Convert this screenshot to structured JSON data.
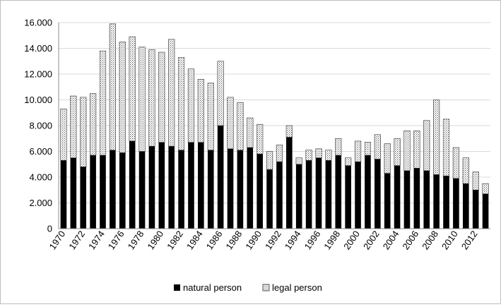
{
  "chart_data": {
    "type": "bar",
    "stacked": true,
    "title": "",
    "xlabel": "",
    "ylabel": "",
    "ylim": [
      0,
      16000
    ],
    "y_ticks": [
      0,
      2000,
      4000,
      6000,
      8000,
      10000,
      12000,
      14000,
      16000
    ],
    "y_tick_labels": [
      "0",
      "2.000",
      "4.000",
      "6.000",
      "8.000",
      "10.000",
      "12.000",
      "14.000",
      "16.000"
    ],
    "grid": true,
    "legend_position": "bottom",
    "categories": [
      "1970",
      "1971",
      "1972",
      "1973",
      "1974",
      "1975",
      "1976",
      "1977",
      "1978",
      "1979",
      "1980",
      "1981",
      "1982",
      "1983",
      "1984",
      "1985",
      "1986",
      "1987",
      "1988",
      "1989",
      "1990",
      "1991",
      "1992",
      "1993",
      "1994",
      "1995",
      "1996",
      "1997",
      "1998",
      "1999",
      "2000",
      "2001",
      "2002",
      "2003",
      "2004",
      "2005",
      "2006",
      "2007",
      "2008",
      "2009",
      "2010",
      "2011",
      "2012",
      "2013"
    ],
    "x_tick_labels": [
      "1970",
      "",
      "1972",
      "",
      "1974",
      "",
      "1976",
      "",
      "1978",
      "",
      "1980",
      "",
      "1982",
      "",
      "1984",
      "",
      "1986",
      "",
      "1988",
      "",
      "1990",
      "",
      "1992",
      "",
      "1994",
      "",
      "1996",
      "",
      "1998",
      "",
      "2000",
      "",
      "2002",
      "",
      "2004",
      "",
      "2006",
      "",
      "2008",
      "",
      "2010",
      "",
      "2012",
      ""
    ],
    "series": [
      {
        "name": "natural person",
        "color": "#000000",
        "pattern": "solid",
        "values": [
          5300,
          5500,
          4800,
          5700,
          5700,
          6100,
          5900,
          6800,
          6000,
          6400,
          6700,
          6400,
          6100,
          6700,
          6700,
          6100,
          8000,
          6200,
          6100,
          6300,
          5800,
          4600,
          5200,
          7100,
          5000,
          5300,
          5500,
          5300,
          5700,
          4900,
          5200,
          5700,
          5400,
          4300,
          4900,
          4500,
          4700,
          4500,
          4200,
          4100,
          3900,
          3500,
          3000,
          2700
        ]
      },
      {
        "name": "legal person",
        "color": "#ffffff",
        "pattern": "dotted",
        "values": [
          4000,
          4800,
          5400,
          4800,
          8100,
          9800,
          8600,
          8100,
          8100,
          7500,
          7000,
          8300,
          7200,
          5700,
          4900,
          5200,
          5000,
          4000,
          3700,
          2300,
          2300,
          1400,
          1300,
          900,
          500,
          800,
          700,
          800,
          1300,
          600,
          1600,
          1000,
          1900,
          2300,
          2100,
          3100,
          2900,
          3900,
          5800,
          4400,
          2400,
          2000,
          1400,
          800
        ]
      }
    ]
  }
}
